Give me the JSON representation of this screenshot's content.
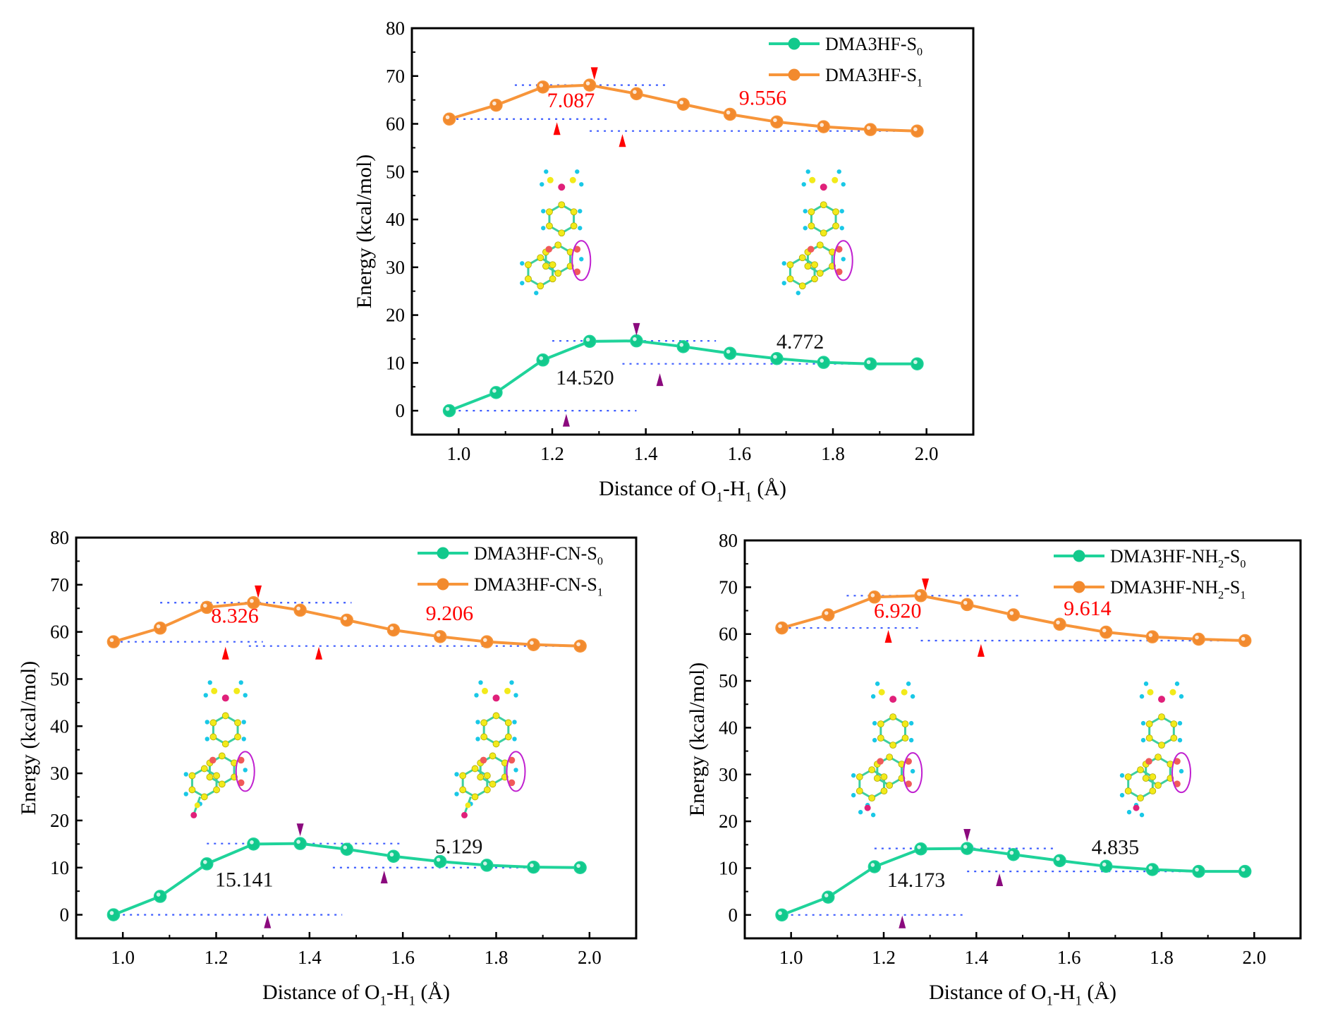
{
  "colors": {
    "s0": "#1fd39a",
    "s1": "#f7953a",
    "s0_marker": "#12c98c",
    "s1_marker": "#f28a2e",
    "guide": "#3d5cff",
    "red": "#ff0000",
    "purple": "#8b0a7e",
    "axis": "#000000"
  },
  "chart_data": [
    {
      "id": "dma3hf",
      "type": "line",
      "title": "",
      "ylabel": "Energy (kcal/mol)",
      "xlabel": [
        [
          "Distance of O",
          ""
        ],
        [
          "1",
          "sub"
        ],
        [
          "-H",
          ""
        ],
        [
          "1",
          "sub"
        ],
        [
          " (Å)",
          ""
        ]
      ],
      "xlim": [
        0.9,
        2.1
      ],
      "ylim": [
        -5,
        80
      ],
      "xticks": [
        "1.0",
        "1.2",
        "1.4",
        "1.6",
        "1.8",
        "2.0"
      ],
      "yticks": [
        "0",
        "10",
        "20",
        "30",
        "40",
        "50",
        "60",
        "70",
        "80"
      ],
      "x": [
        0.98,
        1.08,
        1.18,
        1.28,
        1.38,
        1.48,
        1.58,
        1.68,
        1.78,
        1.88,
        1.98
      ],
      "series": [
        {
          "key": "s0",
          "legend": [
            [
              "DMA3HF-S",
              ""
            ],
            [
              "0",
              "sub"
            ]
          ],
          "values": [
            0,
            3.8,
            10.6,
            14.5,
            14.6,
            13.4,
            12.0,
            10.9,
            10.1,
            9.8,
            9.8
          ]
        },
        {
          "key": "s1",
          "legend": [
            [
              "DMA3HF-S",
              ""
            ],
            [
              "1",
              "sub"
            ]
          ],
          "values": [
            61.0,
            63.9,
            67.7,
            68.1,
            66.3,
            64.1,
            62.0,
            60.4,
            59.4,
            58.8,
            58.5
          ]
        }
      ],
      "legend_position": "top-right",
      "guides": [
        [
          68.1,
          1.12,
          1.45
        ],
        [
          61.0,
          0.98,
          1.32
        ],
        [
          58.5,
          1.28,
          1.98
        ],
        [
          14.6,
          1.2,
          1.55
        ],
        [
          0,
          1.0,
          1.38
        ],
        [
          9.8,
          1.35,
          1.98
        ]
      ],
      "labels": [
        {
          "text": "7.087",
          "x": 1.24,
          "y": 63.5,
          "color": "red"
        },
        {
          "text": "9.556",
          "x": 1.65,
          "y": 64.0,
          "color": "red"
        },
        {
          "text": "14.520",
          "x": 1.27,
          "y": 5.5,
          "color": "black"
        },
        {
          "text": "4.772",
          "x": 1.73,
          "y": 13.0,
          "color": "black"
        }
      ],
      "arrows": [
        {
          "x": 1.29,
          "y": 70.5,
          "dir": "down",
          "color": "red"
        },
        {
          "x": 1.21,
          "y": 59.0,
          "dir": "up",
          "color": "red"
        },
        {
          "x": 1.35,
          "y": 56.5,
          "dir": "up",
          "color": "red"
        },
        {
          "x": 1.38,
          "y": 17.0,
          "dir": "down",
          "color": "purple"
        },
        {
          "x": 1.43,
          "y": 6.5,
          "dir": "up",
          "color": "purple"
        },
        {
          "x": 1.23,
          "y": -2.0,
          "dir": "up",
          "color": "purple"
        }
      ],
      "molecules": [
        {
          "x": 1.22,
          "y": 32,
          "sub": "none"
        },
        {
          "x": 1.78,
          "y": 32,
          "sub": "none"
        }
      ]
    },
    {
      "id": "dma3hf-cn",
      "type": "line",
      "title": "",
      "ylabel": "Energy (kcal/mol)",
      "xlabel": [
        [
          "Distance of O",
          ""
        ],
        [
          "1",
          "sub"
        ],
        [
          "-H",
          ""
        ],
        [
          "1",
          "sub"
        ],
        [
          " (Å)",
          ""
        ]
      ],
      "xlim": [
        0.9,
        2.1
      ],
      "ylim": [
        -5,
        80
      ],
      "xticks": [
        "1.0",
        "1.2",
        "1.4",
        "1.6",
        "1.8",
        "2.0"
      ],
      "yticks": [
        "0",
        "10",
        "20",
        "30",
        "40",
        "50",
        "60",
        "70",
        "80"
      ],
      "x": [
        0.98,
        1.08,
        1.18,
        1.28,
        1.38,
        1.48,
        1.58,
        1.68,
        1.78,
        1.88,
        1.98
      ],
      "series": [
        {
          "key": "s0",
          "legend": [
            [
              "DMA3HF-CN-S",
              ""
            ],
            [
              "0",
              "sub"
            ]
          ],
          "values": [
            0,
            3.9,
            10.8,
            15.0,
            15.1,
            13.9,
            12.4,
            11.3,
            10.5,
            10.1,
            10.0
          ]
        },
        {
          "key": "s1",
          "legend": [
            [
              "DMA3HF-CN-S",
              ""
            ],
            [
              "1",
              "sub"
            ]
          ],
          "values": [
            57.9,
            60.8,
            65.2,
            66.2,
            64.6,
            62.5,
            60.4,
            59.0,
            57.9,
            57.3,
            57.0
          ]
        }
      ],
      "legend_position": "top-right",
      "guides": [
        [
          66.2,
          1.08,
          1.49
        ],
        [
          57.9,
          0.98,
          1.3
        ],
        [
          57.0,
          1.27,
          1.98
        ],
        [
          15.1,
          1.18,
          1.6
        ],
        [
          0,
          1.0,
          1.47
        ],
        [
          10.0,
          1.45,
          1.98
        ]
      ],
      "labels": [
        {
          "text": "8.326",
          "x": 1.24,
          "y": 62.0,
          "color": "red"
        },
        {
          "text": "9.206",
          "x": 1.7,
          "y": 62.5,
          "color": "red"
        },
        {
          "text": "15.141",
          "x": 1.26,
          "y": 6.0,
          "color": "black"
        },
        {
          "text": "5.129",
          "x": 1.72,
          "y": 13.0,
          "color": "black"
        }
      ],
      "arrows": [
        {
          "x": 1.29,
          "y": 68.5,
          "dir": "down",
          "color": "red"
        },
        {
          "x": 1.22,
          "y": 55.5,
          "dir": "up",
          "color": "red"
        },
        {
          "x": 1.42,
          "y": 55.5,
          "dir": "up",
          "color": "red"
        },
        {
          "x": 1.38,
          "y": 18.0,
          "dir": "down",
          "color": "purple"
        },
        {
          "x": 1.56,
          "y": 8.0,
          "dir": "up",
          "color": "purple"
        },
        {
          "x": 1.31,
          "y": -1.5,
          "dir": "up",
          "color": "purple"
        }
      ],
      "molecules": [
        {
          "x": 1.22,
          "y": 31,
          "sub": "cn"
        },
        {
          "x": 1.8,
          "y": 31,
          "sub": "cn"
        }
      ]
    },
    {
      "id": "dma3hf-nh2",
      "type": "line",
      "title": "",
      "ylabel": "Energy (kcal/mol)",
      "xlabel": [
        [
          "Distance of O",
          ""
        ],
        [
          "1",
          "sub"
        ],
        [
          "-H",
          ""
        ],
        [
          "1",
          "sub"
        ],
        [
          " (Å)",
          ""
        ]
      ],
      "xlim": [
        0.9,
        2.1
      ],
      "ylim": [
        -5,
        80
      ],
      "xticks": [
        "1.0",
        "1.2",
        "1.4",
        "1.6",
        "1.8",
        "2.0"
      ],
      "yticks": [
        "0",
        "10",
        "20",
        "30",
        "40",
        "50",
        "60",
        "70",
        "80"
      ],
      "x": [
        0.98,
        1.08,
        1.18,
        1.28,
        1.38,
        1.48,
        1.58,
        1.68,
        1.78,
        1.88,
        1.98
      ],
      "series": [
        {
          "key": "s0",
          "legend": [
            [
              "DMA3HF-NH",
              ""
            ],
            [
              "2",
              "sub"
            ],
            [
              "-S",
              ""
            ],
            [
              "0",
              "sub"
            ]
          ],
          "values": [
            0,
            3.8,
            10.3,
            14.1,
            14.2,
            12.9,
            11.6,
            10.4,
            9.7,
            9.3,
            9.3
          ]
        },
        {
          "key": "s1",
          "legend": [
            [
              "DMA3HF-NH",
              ""
            ],
            [
              "2",
              "sub"
            ],
            [
              "-S",
              ""
            ],
            [
              "1",
              "sub"
            ]
          ],
          "values": [
            61.3,
            64.1,
            67.9,
            68.2,
            66.3,
            64.1,
            62.1,
            60.4,
            59.4,
            58.9,
            58.6
          ]
        }
      ],
      "legend_position": "top-right",
      "guides": [
        [
          68.2,
          1.12,
          1.5
        ],
        [
          61.3,
          0.98,
          1.28
        ],
        [
          58.6,
          1.28,
          1.98
        ],
        [
          14.2,
          1.18,
          1.57
        ],
        [
          0,
          1.0,
          1.37
        ],
        [
          9.3,
          1.38,
          1.98
        ]
      ],
      "labels": [
        {
          "text": "6.920",
          "x": 1.23,
          "y": 63.5,
          "color": "red"
        },
        {
          "text": "9.614",
          "x": 1.64,
          "y": 64.0,
          "color": "red"
        },
        {
          "text": "14.173",
          "x": 1.27,
          "y": 6.0,
          "color": "black"
        },
        {
          "text": "4.835",
          "x": 1.7,
          "y": 13.0,
          "color": "black"
        }
      ],
      "arrows": [
        {
          "x": 1.29,
          "y": 70.5,
          "dir": "down",
          "color": "red"
        },
        {
          "x": 1.21,
          "y": 59.5,
          "dir": "up",
          "color": "red"
        },
        {
          "x": 1.41,
          "y": 56.5,
          "dir": "up",
          "color": "red"
        },
        {
          "x": 1.38,
          "y": 17.0,
          "dir": "down",
          "color": "purple"
        },
        {
          "x": 1.45,
          "y": 7.5,
          "dir": "up",
          "color": "purple"
        },
        {
          "x": 1.24,
          "y": -1.5,
          "dir": "up",
          "color": "purple"
        }
      ],
      "molecules": [
        {
          "x": 1.22,
          "y": 31,
          "sub": "nh2"
        },
        {
          "x": 1.8,
          "y": 31,
          "sub": "nh2"
        }
      ]
    }
  ]
}
